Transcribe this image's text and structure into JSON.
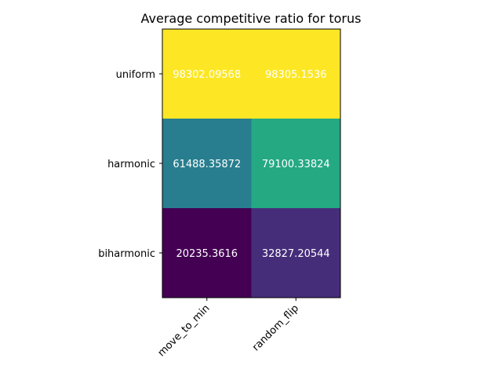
{
  "chart_data": {
    "type": "heatmap",
    "title": "Average competitive ratio for torus",
    "xlabel": "",
    "ylabel": "",
    "x_categories": [
      "move_to_min",
      "random_flip"
    ],
    "y_categories": [
      "uniform",
      "harmonic",
      "biharmonic"
    ],
    "values": [
      [
        98302.09568,
        98305.1536
      ],
      [
        61488.35872,
        79100.33824
      ],
      [
        20235.3616,
        32827.20544
      ]
    ],
    "value_labels": [
      [
        "98302.09568",
        "98305.1536"
      ],
      [
        "61488.35872",
        "79100.33824"
      ],
      [
        "20235.3616",
        "32827.20544"
      ]
    ],
    "colormap": "viridis",
    "x_tick_rotation_deg": 45,
    "grid": false,
    "legend": "none"
  }
}
